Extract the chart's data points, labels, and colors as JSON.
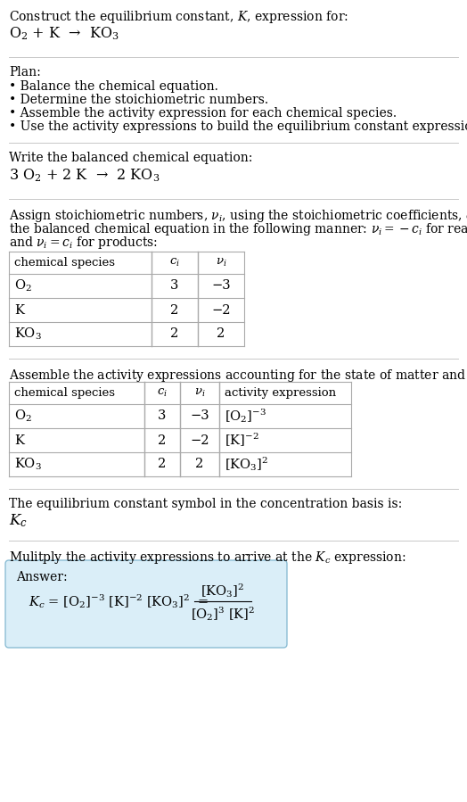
{
  "title_line1": "Construct the equilibrium constant, $K$, expression for:",
  "reaction_unbalanced": "$\\mathrm{O_2}$ + K  →  KO$_3$",
  "plan_header": "Plan:",
  "plan_bullets": [
    "• Balance the chemical equation.",
    "• Determine the stoichiometric numbers.",
    "• Assemble the activity expression for each chemical species.",
    "• Use the activity expressions to build the equilibrium constant expression."
  ],
  "balanced_header": "Write the balanced chemical equation:",
  "reaction_balanced": "3 O$_2$ + 2 K  →  2 KO$_3$",
  "stoich_intro_lines": [
    "Assign stoichiometric numbers, $\\nu_i$, using the stoichiometric coefficients, $c_i$, from",
    "the balanced chemical equation in the following manner: $\\nu_i = -c_i$ for reactants",
    "and $\\nu_i = c_i$ for products:"
  ],
  "table1_headers": [
    "chemical species",
    "$c_i$",
    "$\\nu_i$"
  ],
  "table1_rows": [
    [
      "O$_2$",
      "3",
      "−3"
    ],
    [
      "K",
      "2",
      "−2"
    ],
    [
      "KO$_3$",
      "2",
      "2"
    ]
  ],
  "activity_intro": "Assemble the activity expressions accounting for the state of matter and $\\nu_i$:",
  "table2_headers": [
    "chemical species",
    "$c_i$",
    "$\\nu_i$",
    "activity expression"
  ],
  "table2_rows": [
    [
      "O$_2$",
      "3",
      "−3",
      "[O$_2$]$^{-3}$"
    ],
    [
      "K",
      "2",
      "−2",
      "[K]$^{-2}$"
    ],
    [
      "KO$_3$",
      "2",
      "2",
      "[KO$_3$]$^2$"
    ]
  ],
  "kc_text": "The equilibrium constant symbol in the concentration basis is:",
  "kc_symbol": "$K_c$",
  "multiply_text": "Mulitply the activity expressions to arrive at the $K_c$ expression:",
  "answer_label": "Answer:",
  "answer_lhs": "$K_c$ = [O$_2$]$^{-3}$ [K]$^{-2}$ [KO$_3$]$^2$  =",
  "answer_numerator": "[KO$_3$]$^2$",
  "answer_denominator": "[O$_2$]$^3$ [K]$^2$",
  "answer_box_color": "#daeef8",
  "answer_box_border": "#8bbdd4",
  "bg_color": "#ffffff",
  "text_color": "#000000",
  "table_border_color": "#aaaaaa",
  "separator_color": "#c8c8c8",
  "font_family": "DejaVu Serif"
}
